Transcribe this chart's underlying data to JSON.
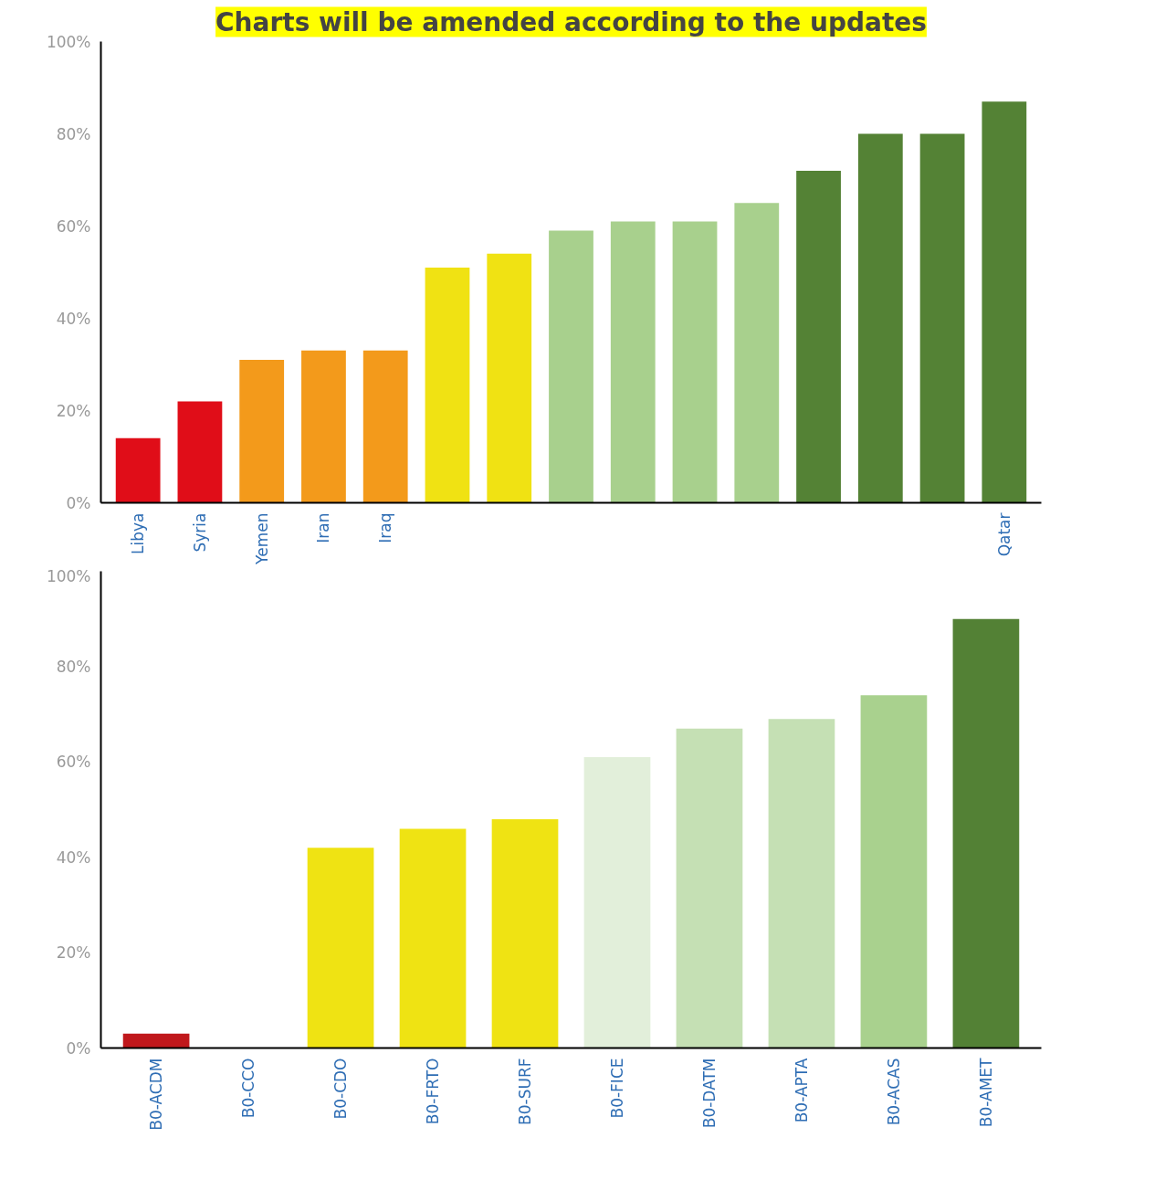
{
  "chart_data": [
    {
      "type": "bar",
      "annotations": [
        "Charts will be amended according to the updates"
      ],
      "categories": [
        "Libya",
        "Syria",
        "Yemen",
        "Iran",
        "Iraq",
        null,
        null,
        null,
        null,
        null,
        null,
        null,
        null,
        null,
        "Qatar"
      ],
      "values": [
        14,
        22,
        31,
        33,
        33,
        51,
        54,
        59,
        61,
        61,
        65,
        72,
        80,
        80,
        87
      ],
      "colors": [
        "#e00d18",
        "#e00d18",
        "#f39a1b",
        "#f39a1b",
        "#f39a1b",
        "#f0e213",
        "#f0e213",
        "#a8d08d",
        "#a8d08d",
        "#a8d08d",
        "#a8d08d",
        "#548235",
        "#548235",
        "#548235",
        "#548235"
      ],
      "ylim": [
        0,
        100
      ],
      "yticks": [
        {
          "value": 0,
          "label": "0%"
        },
        {
          "value": 20,
          "label": "20%"
        },
        {
          "value": 40,
          "label": "40%"
        },
        {
          "value": 60,
          "label": "60%"
        },
        {
          "value": 80,
          "label": "80%"
        },
        {
          "value": 100,
          "label": "100%"
        }
      ],
      "grid": false
    },
    {
      "type": "bar",
      "categories": [
        "B0-ACDM",
        "B0-CCO",
        "B0-CDO",
        "B0-FRTO",
        "B0-SURF",
        "B0-FICE",
        "B0-DATM",
        "B0-APTA",
        "B0-ACAS",
        "B0-AMET"
      ],
      "values": [
        3,
        null,
        42,
        46,
        48,
        61,
        67,
        69,
        74,
        90
      ],
      "colors": [
        "#c0181c",
        "#fcc818",
        "#efe313",
        "#efe313",
        "#efe313",
        "#e2efda",
        "#c5e0b4",
        "#c5e0b4",
        "#a9d18e",
        "#538135"
      ],
      "ylim": [
        0,
        100
      ],
      "yticks": [
        {
          "value": 0,
          "label": "0%"
        },
        {
          "value": 20,
          "label": "20%"
        },
        {
          "value": 40,
          "label": "40%"
        },
        {
          "value": 60,
          "label": "60%"
        },
        {
          "value": 80,
          "label": "80%"
        },
        {
          "value": 100,
          "label": "100%"
        }
      ],
      "grid": false
    }
  ]
}
